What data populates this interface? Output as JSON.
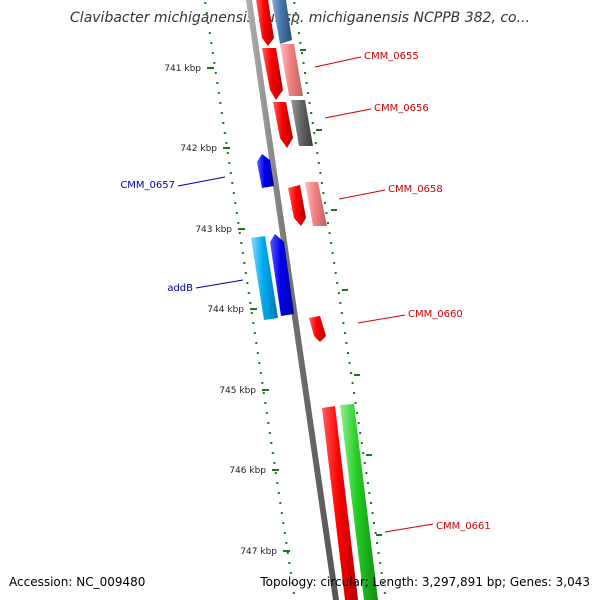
{
  "title": "Clavibacter michiganensis subsp. michiganensis NCPPB 382, co...",
  "footer": {
    "accession": "Accession: NC_009480",
    "summary": "Topology: circular; Length: 3,297,891 bp; Genes: 3,043"
  },
  "colors": {
    "backbone": "#808080",
    "tick": "#1a7a1a",
    "forward_label": "#cc0000",
    "reverse_label": "#0000aa",
    "red": "#ff0000",
    "light_red": "#f08080",
    "dark_gray": "#666666",
    "blue": "#0000ee",
    "cyan": "#00aaee",
    "green": "#22cc22",
    "steel_blue": "#4477aa"
  },
  "ticks": [
    "741 kbp",
    "742 kbp",
    "743 kbp",
    "744 kbp",
    "745 kbp",
    "746 kbp",
    "747 kbp"
  ],
  "gene_labels": [
    {
      "text": "CMM_0655",
      "strand": "forward"
    },
    {
      "text": "CMM_0656",
      "strand": "forward"
    },
    {
      "text": "CMM_0657",
      "strand": "reverse"
    },
    {
      "text": "CMM_0658",
      "strand": "forward"
    },
    {
      "text": "addB",
      "strand": "reverse"
    },
    {
      "text": "CMM_0660",
      "strand": "forward"
    },
    {
      "text": "CMM_0661",
      "strand": "forward"
    }
  ]
}
